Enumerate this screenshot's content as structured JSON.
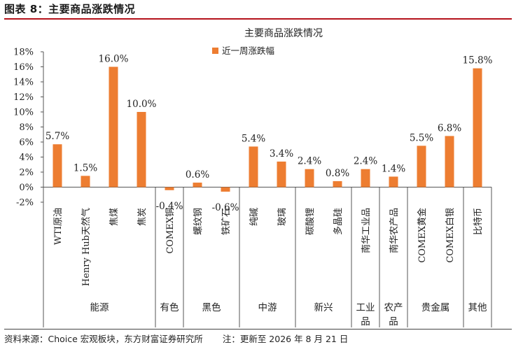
{
  "figure_title": "图表 8：主要商品涨跌情况",
  "source_left": "资料来源：Choice 宏观板块，东方财富证券研究所",
  "source_right": "注：更新至 2026 年 8 月 21 日",
  "chart_data": {
    "type": "bar",
    "title": "主要商品涨跌情况",
    "legend": "近一周涨跌幅",
    "legend_position": "top",
    "bar_color": "#ed7d31",
    "ylim": [
      -2,
      18
    ],
    "y_ticks": [
      "18%",
      "16%",
      "14%",
      "12%",
      "10%",
      "8%",
      "6%",
      "4%",
      "2%",
      "0%",
      "-2%"
    ],
    "grid": false,
    "categories": [
      "WTI原油",
      "Henry Hub天然气",
      "焦煤",
      "焦炭",
      "COMEX铜",
      "螺纹钢",
      "铁矿石",
      "纯碱",
      "玻璃",
      "碳酸锂",
      "多晶硅",
      "南华工业品",
      "南华农产品",
      "COMEX黄金",
      "COMEX白银",
      "比特币"
    ],
    "values": [
      5.7,
      1.5,
      16.0,
      10.0,
      -0.4,
      0.6,
      -0.6,
      5.4,
      3.4,
      2.4,
      0.8,
      2.4,
      1.4,
      5.5,
      6.8,
      15.8
    ],
    "data_labels": [
      "5.7%",
      "1.5%",
      "16.0%",
      "10.0%",
      "-0.4%",
      "0.6%",
      "-0.6%",
      "5.4%",
      "3.4%",
      "2.4%",
      "0.8%",
      "2.4%",
      "1.4%",
      "5.5%",
      "6.8%",
      "15.8%"
    ],
    "groups": [
      {
        "name": "能源",
        "count": 4
      },
      {
        "name": "有色",
        "count": 1
      },
      {
        "name": "黑色",
        "count": 2
      },
      {
        "name": "中游",
        "count": 2
      },
      {
        "name": "新兴",
        "count": 2
      },
      {
        "name": "工业品",
        "count": 1
      },
      {
        "name": "农产品",
        "count": 1
      },
      {
        "name": "贵金属",
        "count": 2
      },
      {
        "name": "其他",
        "count": 1
      }
    ]
  }
}
